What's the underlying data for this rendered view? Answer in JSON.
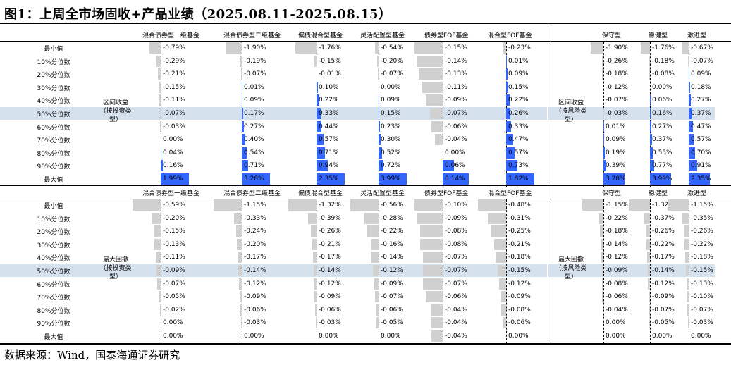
{
  "title": "图1：上周全市场固收+产品业绩（2025.08.11-2025.08.15）",
  "source": "数据来源：Wind，国泰海通证券研究",
  "row_labels": [
    "最小值",
    "10%分位数",
    "20%分位数",
    "30%分位数",
    "40%分位数",
    "50%分位数",
    "60%分位数",
    "70%分位数",
    "80%分位数",
    "90%分位数",
    "最大值"
  ],
  "left_cols": [
    "混合债券型一级基金",
    "混合债券型二级基金",
    "偏债混合型基金",
    "灵活配置型基金",
    "债券型FOF基金",
    "混合型FOF基金"
  ],
  "right_cols": [
    "保守型",
    "稳健型",
    "激进型"
  ],
  "groups": {
    "top_left": "区间收益（按投资类型）",
    "top_right": "区间收益（按风险类型）",
    "bot_left": "最大回撤（按投资类型）",
    "bot_right": "最大回撤（按风险类型）"
  },
  "colors": {
    "positive": "#3366ff",
    "negative": "#d0d0d0",
    "highlight": "#d6e1ee"
  },
  "top_left": [
    [
      "-0.79%",
      "-0.29%",
      "-0.21%",
      "-0.15%",
      "-0.11%",
      "-0.07%",
      "-0.03%",
      "0.00%",
      "0.04%",
      "0.16%",
      "1.99%"
    ],
    [
      "-1.90%",
      "-0.19%",
      "-0.07%",
      "0.01%",
      "0.09%",
      "0.17%",
      "0.27%",
      "0.40%",
      "0.54%",
      "0.71%",
      "3.28%"
    ],
    [
      "-1.76%",
      "-0.15%",
      "-0.01%",
      "0.10%",
      "0.22%",
      "0.33%",
      "0.44%",
      "0.57%",
      "0.71%",
      "0.94%",
      "2.35%"
    ],
    [
      "-0.54%",
      "-0.20%",
      "-0.07%",
      "0.00%",
      "0.09%",
      "0.15%",
      "0.23%",
      "0.30%",
      "0.52%",
      "0.72%",
      "3.99%"
    ],
    [
      "-0.15%",
      "-0.14%",
      "-0.13%",
      "-0.11%",
      "-0.09%",
      "-0.07%",
      "-0.06%",
      "-0.04%",
      "0.00%",
      "0.06%",
      "0.14%"
    ],
    [
      "-0.23%",
      "0.01%",
      "0.09%",
      "0.15%",
      "0.22%",
      "0.26%",
      "0.33%",
      "0.47%",
      "0.57%",
      "0.73%",
      "1.82%"
    ]
  ],
  "top_right": [
    [
      "-1.90%",
      "-0.26%",
      "-0.18%",
      "-0.12%",
      "-0.07%",
      "-0.03%",
      "0.01%",
      "0.09%",
      "0.19%",
      "0.39%",
      "3.28%"
    ],
    [
      "-1.76%",
      "-0.18%",
      "-0.08%",
      "0.00%",
      "0.06%",
      "0.16%",
      "0.27%",
      "0.37%",
      "0.55%",
      "0.77%",
      "3.99%"
    ],
    [
      "-0.67%",
      "-0.07%",
      "0.09%",
      "0.18%",
      "0.27%",
      "0.37%",
      "0.47%",
      "0.57%",
      "0.70%",
      "0.91%",
      "2.35%"
    ]
  ],
  "bot_left": [
    [
      "-0.59%",
      "-0.20%",
      "-0.15%",
      "-0.13%",
      "-0.11%",
      "-0.09%",
      "-0.07%",
      "-0.05%",
      "-0.02%",
      "0.00%",
      "0.00%"
    ],
    [
      "-1.15%",
      "-0.33%",
      "-0.24%",
      "-0.20%",
      "-0.17%",
      "-0.14%",
      "-0.12%",
      "-0.09%",
      "-0.06%",
      "-0.03%",
      "0.00%"
    ],
    [
      "-1.32%",
      "-0.39%",
      "-0.26%",
      "-0.21%",
      "-0.17%",
      "-0.14%",
      "-0.12%",
      "-0.09%",
      "-0.06%",
      "-0.03%",
      "0.00%"
    ],
    [
      "-0.56%",
      "-0.28%",
      "-0.22%",
      "-0.16%",
      "-0.14%",
      "-0.12%",
      "-0.09%",
      "-0.07%",
      "-0.06%",
      "-0.05%",
      "0.00%"
    ],
    [
      "-0.10%",
      "-0.09%",
      "-0.08%",
      "-0.08%",
      "-0.07%",
      "-0.07%",
      "-0.07%",
      "-0.06%",
      "-0.04%",
      "-0.04%",
      "-0.04%"
    ],
    [
      "-0.48%",
      "-0.31%",
      "-0.25%",
      "-0.21%",
      "-0.18%",
      "-0.15%",
      "-0.12%",
      "-0.09%",
      "-0.08%",
      "-0.06%",
      "0.00%"
    ]
  ],
  "bot_right": [
    [
      "-1.15%",
      "-0.22%",
      "-0.18%",
      "-0.14%",
      "-0.12%",
      "-0.09%",
      "-0.08%",
      "-0.06%",
      "-0.04%",
      "0.00%",
      "0.00%"
    ],
    [
      "-1.32%",
      "-0.37%",
      "-0.26%",
      "-0.22%",
      "-0.17%",
      "-0.14%",
      "-0.12%",
      "-0.09%",
      "-0.07%",
      "-0.05%",
      "0.00%"
    ],
    [
      "-1.15%",
      "-0.35%",
      "-0.26%",
      "-0.22%",
      "-0.18%",
      "-0.15%",
      "-0.13%",
      "-0.10%",
      "-0.07%",
      "-0.03%",
      "0.00%"
    ]
  ]
}
